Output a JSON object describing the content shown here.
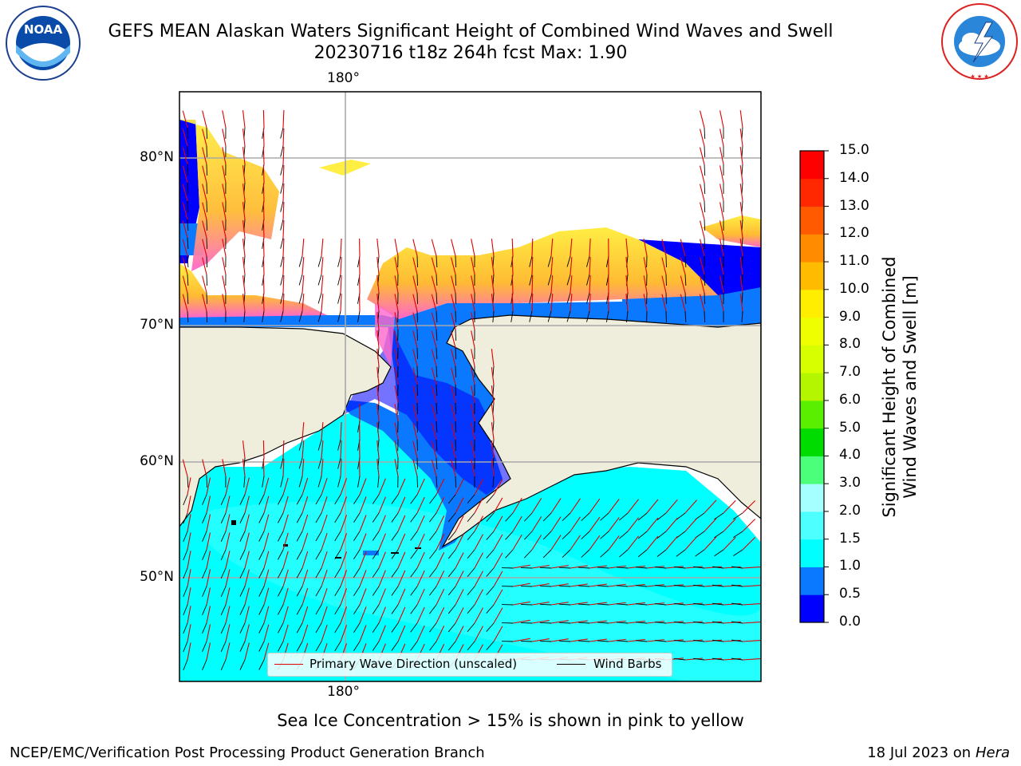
{
  "title": {
    "line1": "GEFS MEAN Alaskan Waters Significant Height of Combined Wind Waves and Swell",
    "line2": "20230716 t18z 264h fcst   Max: 1.90"
  },
  "logos": {
    "left": {
      "text": "NOAA",
      "ring_text": "NATIONAL OCEANIC AND ATMOSPHERIC ADMINISTRATION · U.S. DEPARTMENT OF COMMERCE",
      "icon": "noaa-logo-icon"
    },
    "right": {
      "ring_text": "NATIONAL WEATHER SERVICE",
      "icon": "nws-logo-icon"
    }
  },
  "axes": {
    "lon_labels": [
      "180°"
    ],
    "lat_labels": [
      "80°N",
      "70°N",
      "60°N",
      "50°N"
    ]
  },
  "colorbar": {
    "label_line1": "Significant Height of Combined",
    "label_line2": "Wind Waves and Swell [m]",
    "ticks": [
      "0.0",
      "0.5",
      "1.0",
      "1.5",
      "2.0",
      "3.0",
      "4.0",
      "5.0",
      "6.0",
      "7.0",
      "8.0",
      "9.0",
      "10.0",
      "11.0",
      "12.0",
      "13.0",
      "14.0",
      "15.0"
    ],
    "colors": [
      "#0000ff",
      "#0a78ff",
      "#00ffff",
      "#4dffff",
      "#a6ffff",
      "#4cff7a",
      "#00dc00",
      "#5aee00",
      "#b4f500",
      "#d8ff00",
      "#f0ff00",
      "#ffee00",
      "#ffbb00",
      "#ff8c00",
      "#ff5a00",
      "#ff2800",
      "#ff0000"
    ]
  },
  "legend": {
    "primary_wave": "Primary Wave Direction (unscaled)",
    "wind_barbs": "Wind Barbs",
    "primary_wave_color": "#e00000",
    "wind_barb_color": "#000000"
  },
  "colors": {
    "land": "#efeddc",
    "ocean_low": "#00ffff",
    "ocean_mid": "#0a78ff",
    "ocean_deep": "#0000ff",
    "ice": "#ffbb33",
    "ice_edge": "#ff66cc"
  },
  "note": "Sea Ice Concentration > 15% is shown in pink to yellow",
  "footer": {
    "left": "NCEP/EMC/Verification Post Processing Product Generation Branch",
    "right_date": "18 Jul 2023 on ",
    "right_host": "Hera"
  }
}
